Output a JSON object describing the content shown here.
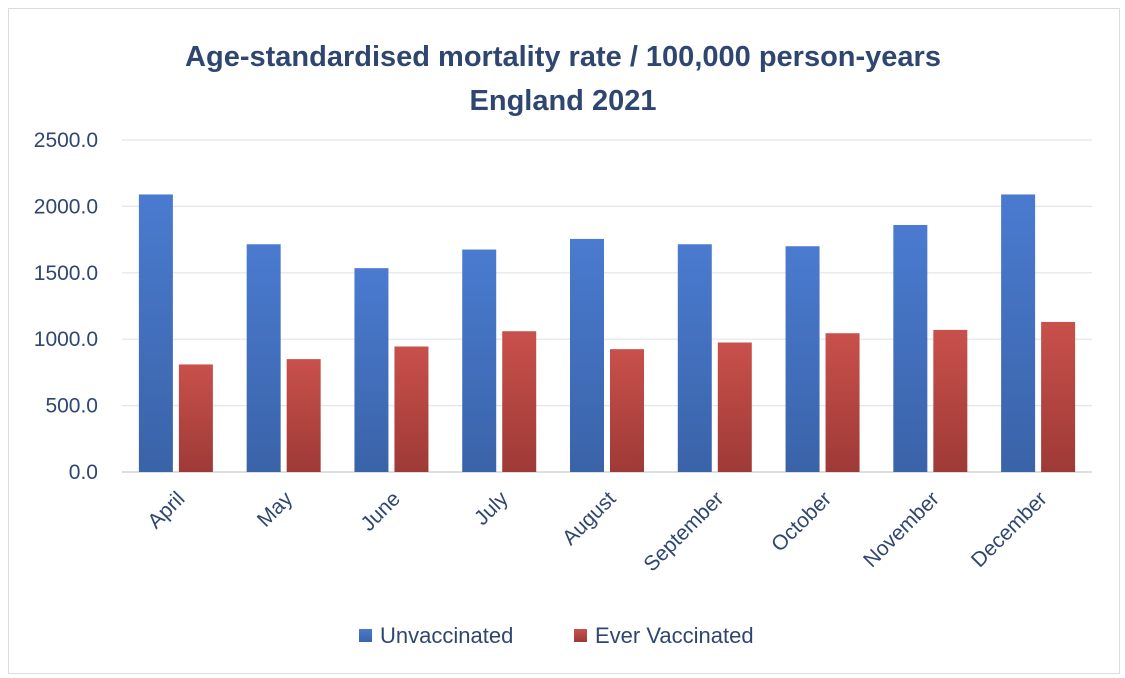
{
  "chart_data": {
    "type": "bar",
    "title": "Age-standardised mortality rate / 100,000 person-years",
    "subtitle": "England 2021",
    "xlabel": "",
    "ylabel": "",
    "ylim": [
      0,
      2500
    ],
    "yticks": [
      "0.0",
      "500.0",
      "1000.0",
      "1500.0",
      "2000.0",
      "2500.0"
    ],
    "grid": true,
    "legend_position": "bottom",
    "categories": [
      "April",
      "May",
      "June",
      "July",
      "August",
      "September",
      "October",
      "November",
      "December"
    ],
    "series": [
      {
        "name": "Unvaccinated",
        "color": "#4472c4",
        "values": [
          2090,
          1715,
          1535,
          1675,
          1755,
          1715,
          1700,
          1860,
          2090
        ]
      },
      {
        "name": "Ever Vaccinated",
        "color": "#c0504d",
        "values": [
          810,
          850,
          945,
          1060,
          925,
          975,
          1045,
          1070,
          1130
        ]
      }
    ]
  }
}
